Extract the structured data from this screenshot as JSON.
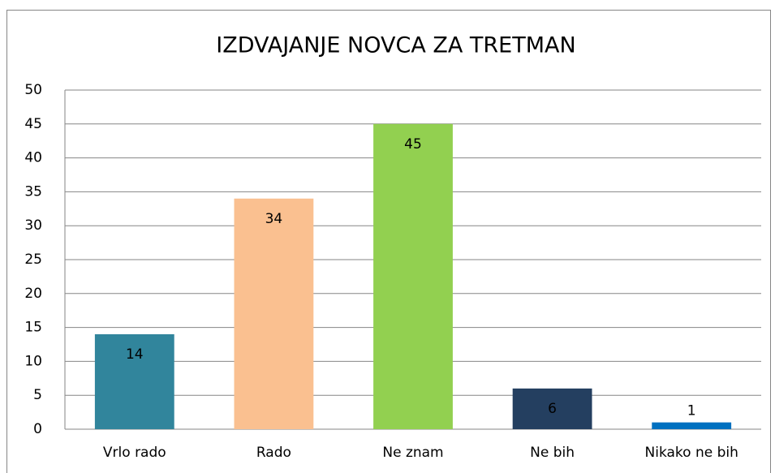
{
  "chart_data": {
    "type": "bar",
    "title": "IZDVAJANJE NOVCA ZA TRETMAN",
    "categories": [
      "Vrlo rado",
      "Rado",
      "Ne znam",
      "Ne bih",
      "Nikako ne bih"
    ],
    "values": [
      14,
      34,
      45,
      6,
      1
    ],
    "colors": [
      "#31859c",
      "#fac090",
      "#92d050",
      "#243f60",
      "#0070c0"
    ],
    "ylim": [
      0,
      50
    ],
    "yticks": [
      0,
      5,
      10,
      15,
      20,
      25,
      30,
      35,
      40,
      45,
      50
    ],
    "grid": true
  }
}
